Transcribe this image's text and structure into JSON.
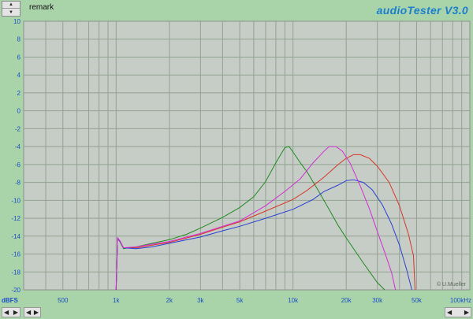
{
  "header": {
    "remark_label": "remark",
    "brand": "audioTester  V3.0"
  },
  "controls": {
    "stepper_up_icon": "triangle-up-icon",
    "stepper_down_icon": "triangle-down-icon",
    "scroll_left_icon": "triangle-left-icon",
    "scroll_right_icon": "triangle-right-icon"
  },
  "chart_data": {
    "type": "line",
    "xscale": "log",
    "xlim": [
      300,
      100000
    ],
    "ylim": [
      -20,
      10
    ],
    "ylabel": "dBFS",
    "xlabel_unit": "kHz",
    "y_ticks": [
      10,
      8,
      6,
      4,
      2,
      0,
      -2,
      -4,
      -6,
      -8,
      -10,
      -12,
      -14,
      -16,
      -18,
      -20
    ],
    "x_ticks": [
      {
        "value": 500,
        "label": "500"
      },
      {
        "value": 1000,
        "label": "1k"
      },
      {
        "value": 2000,
        "label": "2k"
      },
      {
        "value": 3000,
        "label": "3k"
      },
      {
        "value": 5000,
        "label": "5k"
      },
      {
        "value": 10000,
        "label": "10k"
      },
      {
        "value": 20000,
        "label": "20k"
      },
      {
        "value": 30000,
        "label": "30k"
      },
      {
        "value": 50000,
        "label": "50k"
      },
      {
        "value": 100000,
        "label": "100kHz"
      }
    ],
    "grid": true,
    "copyright": "© U.Mueller",
    "series": [
      {
        "color": "#1f8a1f",
        "points": [
          [
            1000,
            -20
          ],
          [
            1020,
            -14.3
          ],
          [
            1050,
            -14.6
          ],
          [
            1100,
            -15.4
          ],
          [
            1300,
            -15.2
          ],
          [
            1600,
            -14.8
          ],
          [
            2000,
            -14.4
          ],
          [
            2500,
            -13.8
          ],
          [
            3000,
            -13.1
          ],
          [
            4000,
            -11.9
          ],
          [
            5000,
            -10.8
          ],
          [
            6000,
            -9.6
          ],
          [
            7000,
            -7.9
          ],
          [
            8000,
            -5.8
          ],
          [
            9000,
            -4.1
          ],
          [
            9500,
            -4.0
          ],
          [
            10000,
            -4.6
          ],
          [
            11000,
            -5.8
          ],
          [
            12000,
            -6.8
          ],
          [
            14000,
            -9.0
          ],
          [
            16000,
            -11.0
          ],
          [
            18000,
            -12.8
          ],
          [
            20000,
            -14.2
          ],
          [
            25000,
            -17.0
          ],
          [
            30000,
            -19.2
          ],
          [
            33000,
            -20
          ]
        ]
      },
      {
        "color": "#d9352a",
        "points": [
          [
            1000,
            -20
          ],
          [
            1020,
            -14.3
          ],
          [
            1050,
            -14.6
          ],
          [
            1100,
            -15.3
          ],
          [
            1300,
            -15.3
          ],
          [
            1600,
            -15.0
          ],
          [
            2000,
            -14.7
          ],
          [
            3000,
            -13.8
          ],
          [
            4000,
            -13.0
          ],
          [
            5000,
            -12.4
          ],
          [
            7000,
            -11.2
          ],
          [
            10000,
            -9.9
          ],
          [
            12000,
            -8.9
          ],
          [
            15000,
            -7.4
          ],
          [
            18000,
            -6.0
          ],
          [
            20000,
            -5.3
          ],
          [
            22000,
            -4.9
          ],
          [
            24000,
            -4.9
          ],
          [
            27000,
            -5.3
          ],
          [
            30000,
            -6.2
          ],
          [
            35000,
            -8.0
          ],
          [
            40000,
            -10.6
          ],
          [
            45000,
            -13.8
          ],
          [
            48000,
            -16.2
          ],
          [
            49000,
            -20
          ]
        ]
      },
      {
        "color": "#2a3fd4",
        "points": [
          [
            1000,
            -20
          ],
          [
            1020,
            -14.2
          ],
          [
            1050,
            -14.6
          ],
          [
            1100,
            -15.3
          ],
          [
            1300,
            -15.4
          ],
          [
            1600,
            -15.2
          ],
          [
            2000,
            -14.8
          ],
          [
            3000,
            -14.1
          ],
          [
            4000,
            -13.4
          ],
          [
            5000,
            -12.9
          ],
          [
            7000,
            -12.0
          ],
          [
            10000,
            -11.0
          ],
          [
            13000,
            -9.9
          ],
          [
            15000,
            -9.0
          ],
          [
            18000,
            -8.3
          ],
          [
            20000,
            -7.8
          ],
          [
            22000,
            -7.7
          ],
          [
            25000,
            -8.0
          ],
          [
            28000,
            -8.8
          ],
          [
            32000,
            -10.5
          ],
          [
            36000,
            -12.6
          ],
          [
            40000,
            -15.0
          ],
          [
            44000,
            -17.8
          ],
          [
            47000,
            -20
          ]
        ]
      },
      {
        "color": "#d32fd3",
        "points": [
          [
            1000,
            -20
          ],
          [
            1020,
            -14.2
          ],
          [
            1050,
            -14.5
          ],
          [
            1100,
            -15.3
          ],
          [
            1300,
            -15.2
          ],
          [
            1600,
            -14.9
          ],
          [
            2000,
            -14.6
          ],
          [
            3000,
            -13.7
          ],
          [
            4000,
            -12.9
          ],
          [
            5000,
            -12.3
          ],
          [
            7000,
            -10.6
          ],
          [
            9000,
            -9.0
          ],
          [
            11000,
            -7.6
          ],
          [
            13000,
            -5.8
          ],
          [
            15000,
            -4.5
          ],
          [
            16000,
            -4.0
          ],
          [
            17500,
            -4.0
          ],
          [
            19000,
            -4.5
          ],
          [
            21000,
            -5.8
          ],
          [
            24000,
            -8.4
          ],
          [
            27000,
            -10.9
          ],
          [
            30000,
            -13.5
          ],
          [
            33000,
            -15.8
          ],
          [
            36000,
            -18.0
          ],
          [
            38000,
            -20
          ]
        ]
      }
    ]
  }
}
